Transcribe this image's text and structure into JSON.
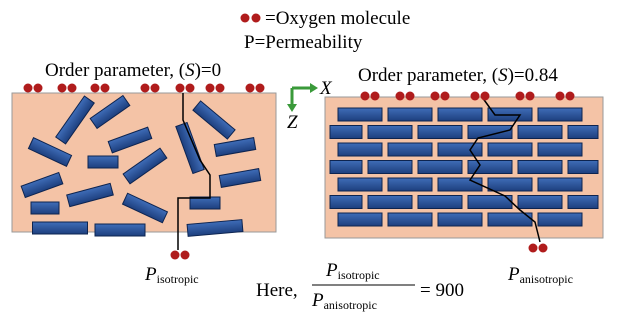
{
  "legend": {
    "oxygen": "=Oxygen molecule",
    "permeability": "P=Permeability"
  },
  "panels": [
    {
      "label": "Order parameter, (",
      "symbol": "S",
      "value": ")=0",
      "p": "P",
      "sub": "isotropic"
    },
    {
      "label": "Order parameter, (",
      "symbol": "S",
      "value": ")=0.84",
      "p": "P",
      "sub": "anisotropic"
    }
  ],
  "axes": {
    "x": "X",
    "z": "Z"
  },
  "equation": {
    "prefix": "Here,",
    "num_p": "P",
    "num_sub": "isotropic",
    "den_p": "P",
    "den_sub": "anisotropic",
    "result": "= 900"
  }
}
